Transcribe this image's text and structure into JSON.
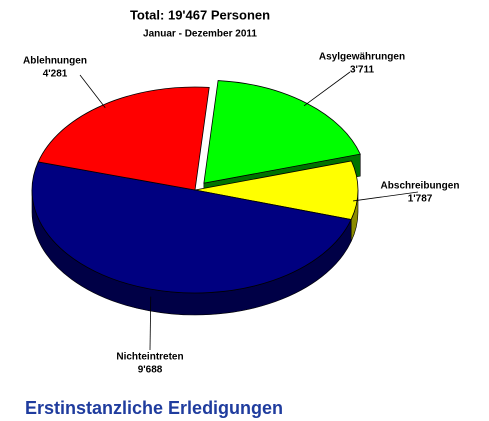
{
  "chart_data": {
    "type": "pie",
    "title": "Total: 19'467 Personen",
    "subtitle": "Januar - Dezember 2011",
    "caption": "Erstinstanzliche Erledigungen",
    "categories": [
      "Asylgewährungen",
      "Abschreibungen",
      "Nichteintreten",
      "Ablehnungen"
    ],
    "values": [
      3711,
      1787,
      9688,
      4281
    ],
    "value_labels": [
      "3'711",
      "1'787",
      "9'688",
      "4'281"
    ],
    "colors": [
      "#00ff00",
      "#ffff00",
      "#000080",
      "#ff0000"
    ],
    "exploded": [
      true,
      false,
      false,
      false
    ],
    "three_d": true
  }
}
